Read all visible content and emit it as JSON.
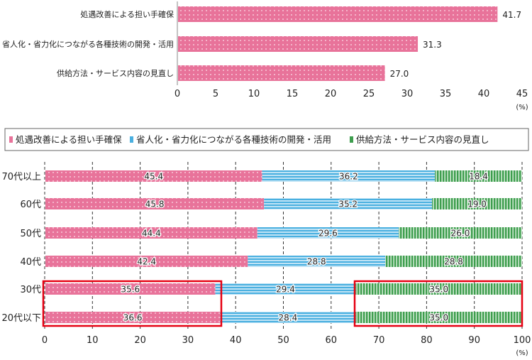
{
  "colors": {
    "pink": "#e8739a",
    "blue": "#4ab0e0",
    "green": "#3e9e4e",
    "highlight": "#e60012"
  },
  "chart_data": [
    {
      "type": "bar",
      "orientation": "horizontal",
      "categories": [
        "処遇改善による担い手確保",
        "省人化・省力化につながる各種技術の開発・活用",
        "供給方法・サービス内容の見直し"
      ],
      "values": [
        41.7,
        31.3,
        27.0
      ],
      "value_labels": [
        "41.7",
        "31.3",
        "27.0"
      ],
      "xlim": [
        0,
        45
      ],
      "xticks": [
        "0",
        "5",
        "10",
        "15",
        "20",
        "25",
        "30",
        "35",
        "40",
        "45"
      ],
      "xunit": "(%)",
      "grid": false
    },
    {
      "type": "bar",
      "orientation": "horizontal",
      "stacked": true,
      "categories": [
        "70代以上",
        "60代",
        "50代",
        "40代",
        "30代",
        "20代以下"
      ],
      "series": [
        {
          "name": "処遇改善による担い手確保",
          "values": [
            45.4,
            45.8,
            44.4,
            42.4,
            35.6,
            36.6
          ],
          "labels": [
            "45.4",
            "45.8",
            "44.4",
            "42.4",
            "35.6",
            "36.6"
          ]
        },
        {
          "name": "省人化・省力化につながる各種技術の開発・活用",
          "values": [
            36.2,
            35.2,
            29.6,
            28.8,
            29.4,
            28.4
          ],
          "labels": [
            "36.2",
            "35.2",
            "29.6",
            "28.8",
            "29.4",
            "28.4"
          ]
        },
        {
          "name": "供給方法・サービス内容の見直し",
          "values": [
            18.4,
            19.0,
            26.0,
            28.8,
            35.0,
            35.0
          ],
          "labels": [
            "18.4",
            "19.0",
            "26.0",
            "28.8",
            "35.0",
            "35.0"
          ]
        }
      ],
      "xlim": [
        0,
        100
      ],
      "xticks": [
        "0",
        "10",
        "20",
        "30",
        "40",
        "50",
        "60",
        "70",
        "80",
        "90",
        "100"
      ],
      "xunit": "(%)",
      "grid": "vertical dashed",
      "legend": "top",
      "highlights": [
        {
          "series": "処遇改善による担い手確保",
          "categories": [
            "30代",
            "20代以下"
          ]
        },
        {
          "series": "供給方法・サービス内容の見直し",
          "categories": [
            "30代",
            "20代以下"
          ]
        }
      ]
    }
  ]
}
